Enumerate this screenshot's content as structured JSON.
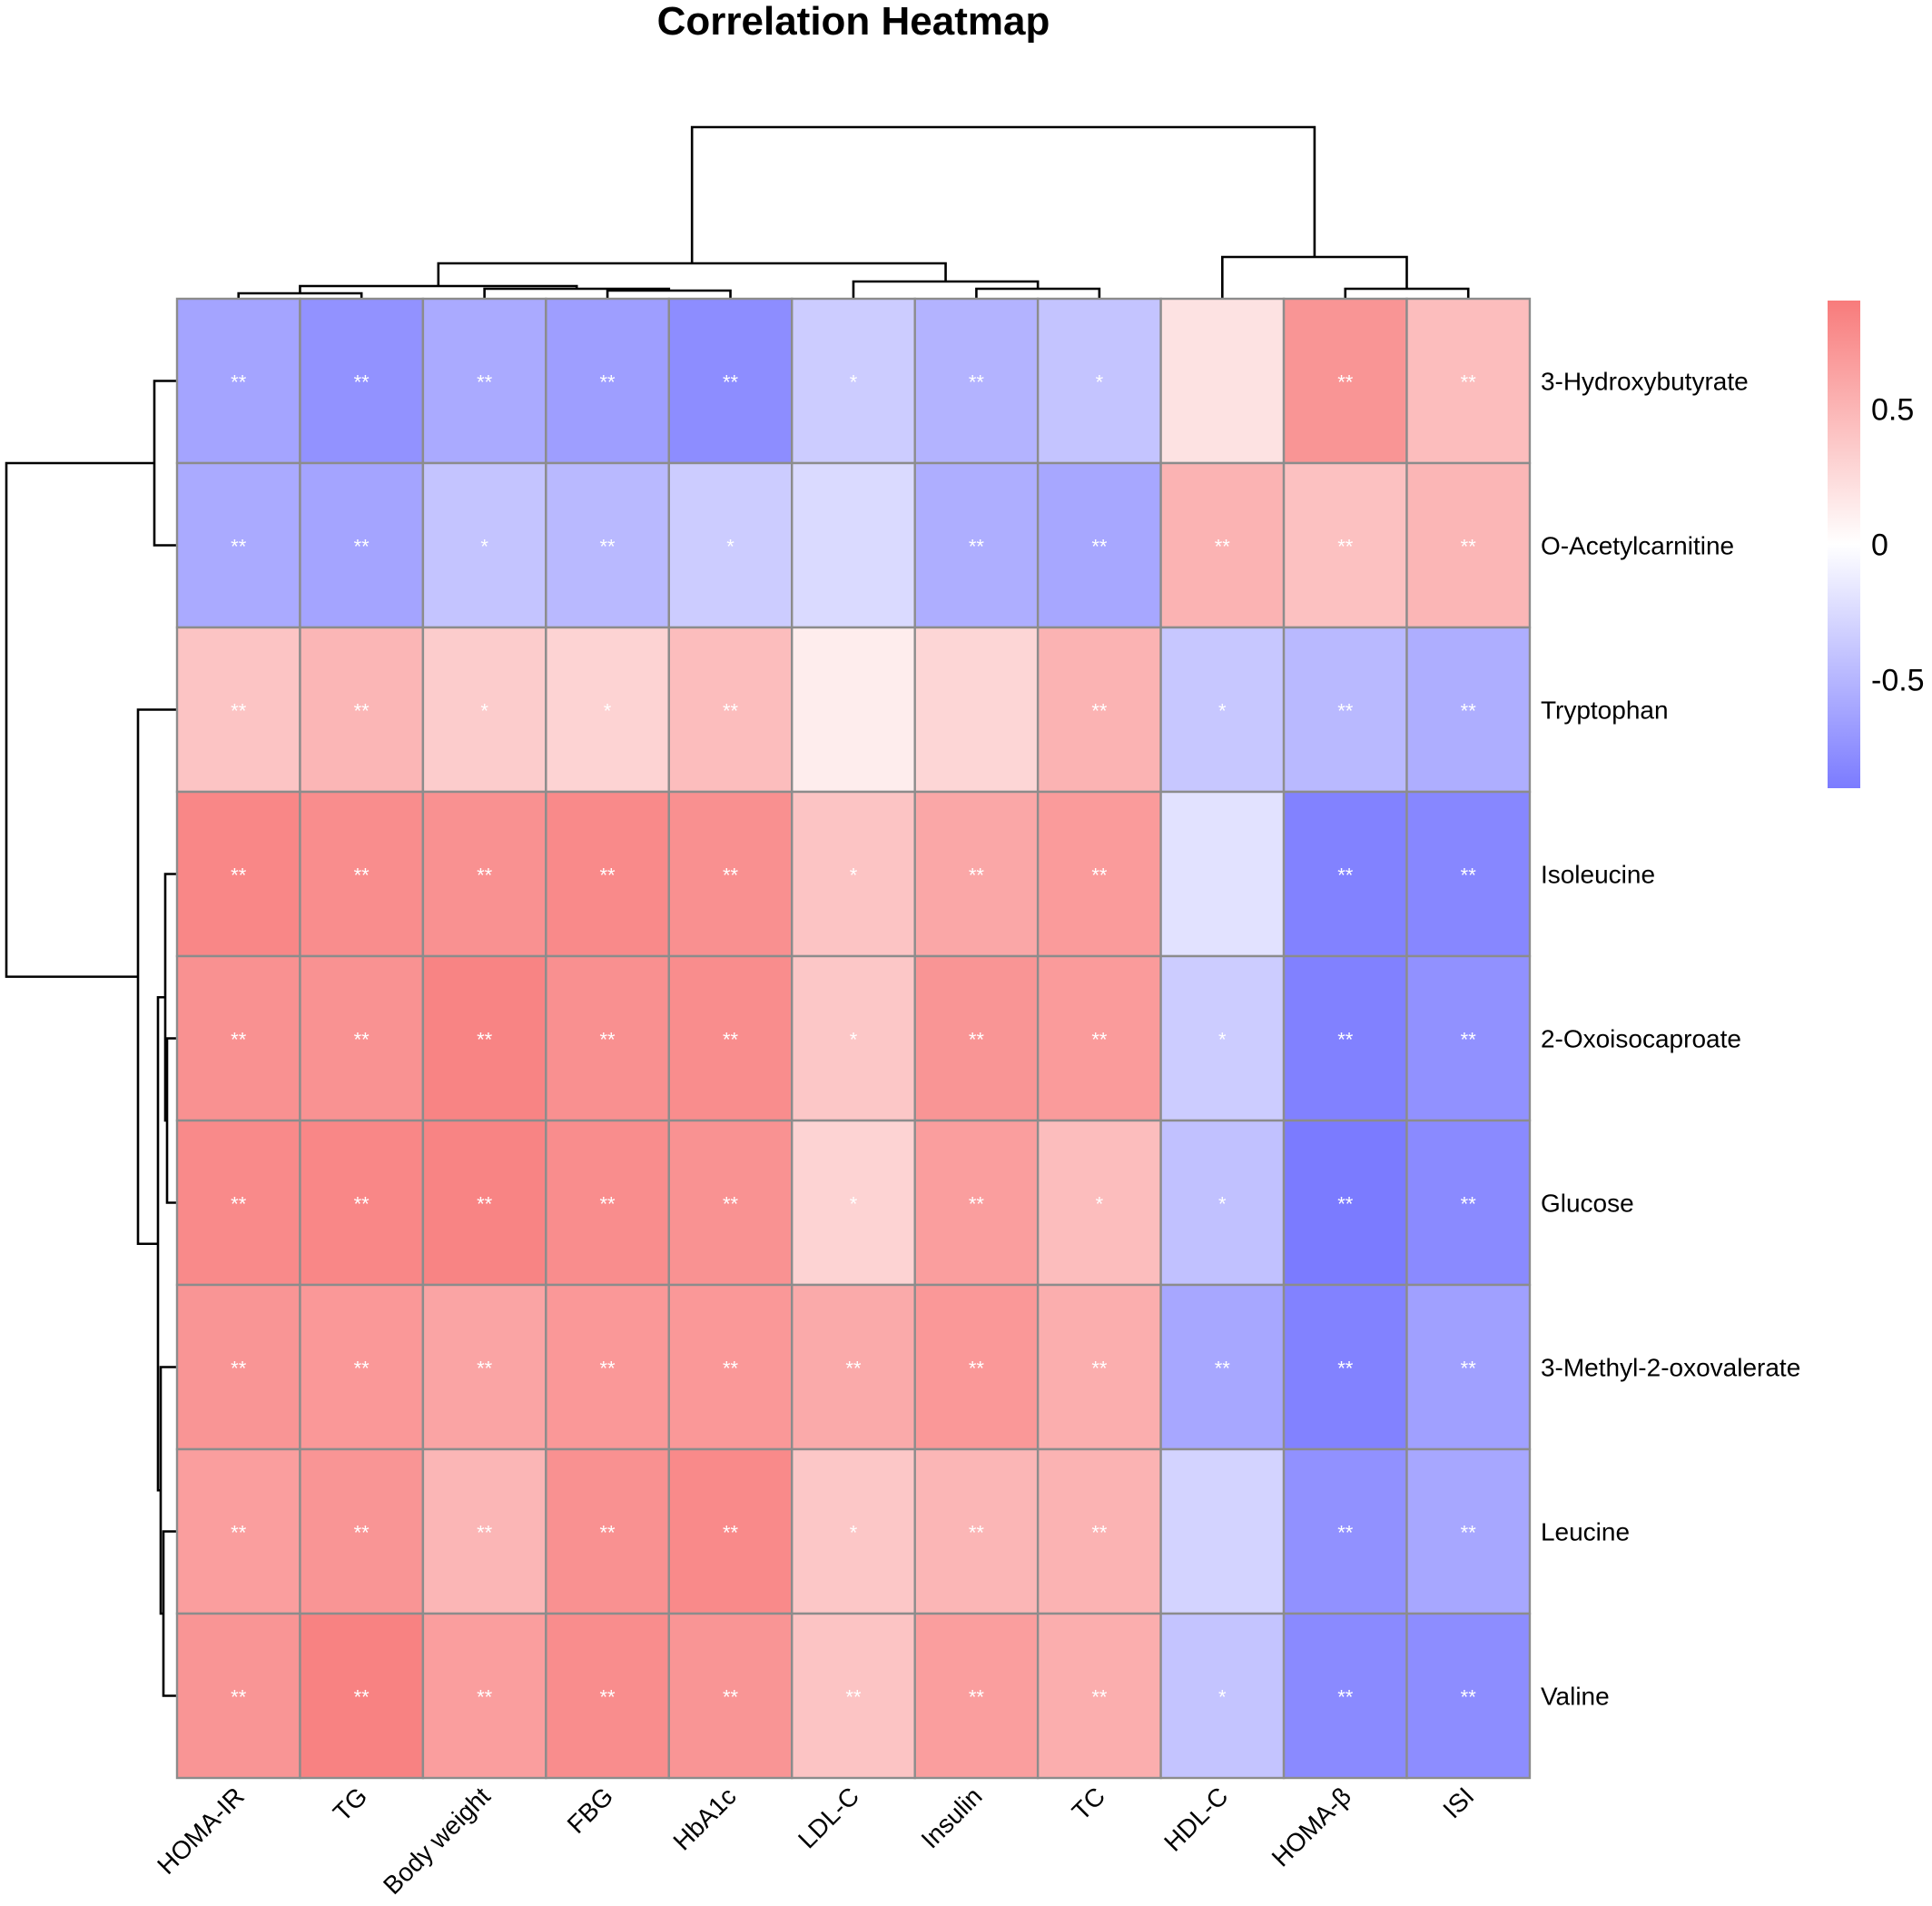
{
  "chart_data": {
    "type": "heatmap",
    "title": "Correlation Heatmap",
    "rows": [
      "3-Hydroxybutyrate",
      "O-Acetylcarnitine",
      "Tryptophan",
      "Isoleucine",
      "2-Oxoisocaproate",
      "Glucose",
      "3-Methyl-2-oxovalerate",
      "Leucine",
      "Valine"
    ],
    "columns": [
      "HOMA-IR",
      "TG",
      "Body weight",
      "FBG",
      "HbA1c",
      "LDL-C",
      "Insulin",
      "TC",
      "HDL-C",
      "HOMA-β",
      "ISI"
    ],
    "values": [
      [
        -0.62,
        -0.74,
        -0.58,
        -0.66,
        -0.78,
        -0.35,
        -0.52,
        -0.4,
        0.2,
        0.72,
        0.45
      ],
      [
        -0.58,
        -0.62,
        -0.4,
        -0.48,
        -0.35,
        -0.25,
        -0.55,
        -0.6,
        0.52,
        0.42,
        0.5
      ],
      [
        0.4,
        0.5,
        0.35,
        0.3,
        0.45,
        0.12,
        0.28,
        0.52,
        -0.38,
        -0.48,
        -0.55
      ],
      [
        0.82,
        0.78,
        0.75,
        0.8,
        0.76,
        0.4,
        0.6,
        0.68,
        -0.2,
        -0.85,
        -0.82
      ],
      [
        0.75,
        0.74,
        0.84,
        0.76,
        0.78,
        0.38,
        0.72,
        0.68,
        -0.35,
        -0.86,
        -0.75
      ],
      [
        0.8,
        0.82,
        0.84,
        0.78,
        0.74,
        0.3,
        0.66,
        0.45,
        -0.42,
        -0.9,
        -0.8
      ],
      [
        0.72,
        0.7,
        0.62,
        0.7,
        0.7,
        0.58,
        0.7,
        0.55,
        -0.6,
        -0.85,
        -0.65
      ],
      [
        0.66,
        0.72,
        0.5,
        0.75,
        0.8,
        0.38,
        0.5,
        0.52,
        -0.3,
        -0.75,
        -0.6
      ],
      [
        0.72,
        0.85,
        0.66,
        0.78,
        0.72,
        0.4,
        0.66,
        0.55,
        -0.4,
        -0.8,
        -0.78
      ]
    ],
    "significance": [
      [
        "**",
        "**",
        "**",
        "**",
        "**",
        "*",
        "**",
        "*",
        "",
        "**",
        "**"
      ],
      [
        "**",
        "**",
        "*",
        "**",
        "*",
        "",
        "**",
        "**",
        "**",
        "**",
        "**"
      ],
      [
        "**",
        "**",
        "*",
        "*",
        "**",
        "",
        "",
        "**",
        "*",
        "**",
        "**"
      ],
      [
        "**",
        "**",
        "**",
        "**",
        "**",
        "*",
        "**",
        "**",
        "",
        "**",
        "**"
      ],
      [
        "**",
        "**",
        "**",
        "**",
        "**",
        "*",
        "**",
        "**",
        "*",
        "**",
        "**"
      ],
      [
        "**",
        "**",
        "**",
        "**",
        "**",
        "*",
        "**",
        "*",
        "*",
        "**",
        "**"
      ],
      [
        "**",
        "**",
        "**",
        "**",
        "**",
        "**",
        "**",
        "**",
        "**",
        "**",
        "**"
      ],
      [
        "**",
        "**",
        "**",
        "**",
        "**",
        "*",
        "**",
        "**",
        "",
        "**",
        "**"
      ],
      [
        "**",
        "**",
        "**",
        "**",
        "**",
        "**",
        "**",
        "**",
        "*",
        "**",
        "**"
      ]
    ],
    "color_scale": {
      "min": -0.9,
      "max": 0.9,
      "low_color": "#7b7bff",
      "mid_color": "#ffffff",
      "high_color": "#f87b7b"
    },
    "legend_ticks": [
      {
        "value": 0.5,
        "label": "0.5"
      },
      {
        "value": 0,
        "label": "0"
      },
      {
        "value": -0.5,
        "label": "-0.5"
      }
    ],
    "legend_position": "right",
    "column_dendrogram": true,
    "row_dendrogram": true
  }
}
